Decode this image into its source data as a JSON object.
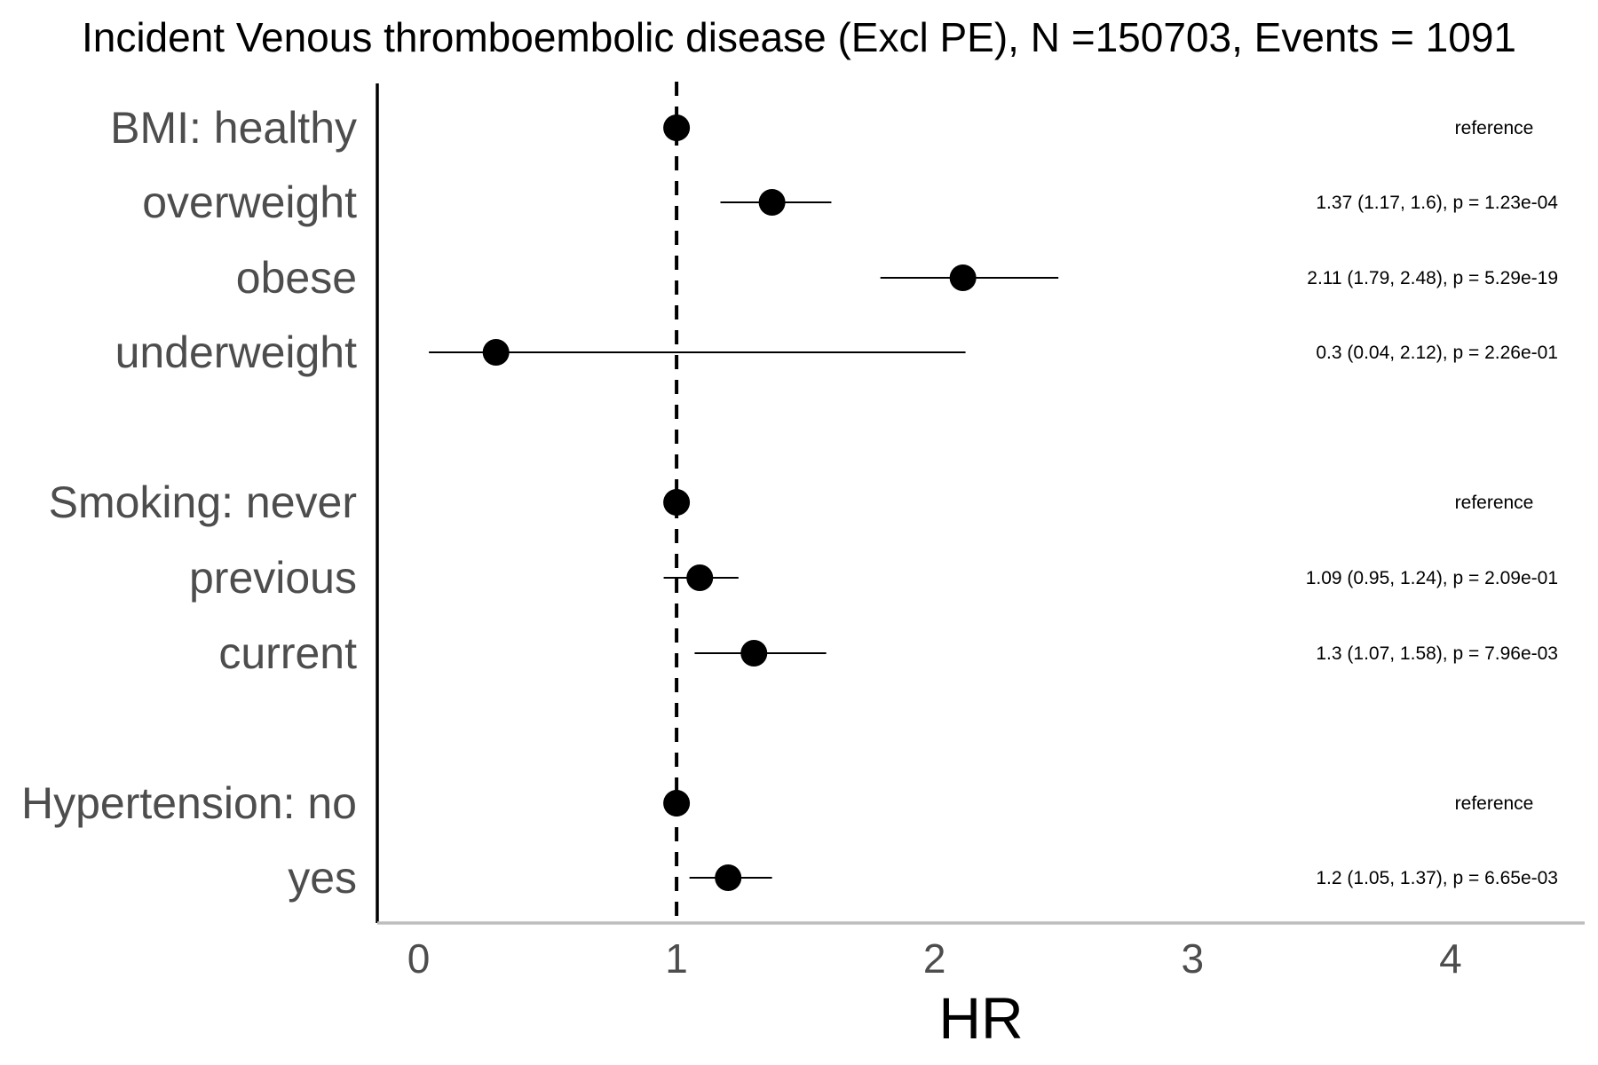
{
  "chart_data": {
    "type": "forest",
    "title": "Incident Venous thromboembolic disease (Excl PE), N =150703, Events = 1091",
    "xlabel": "HR",
    "xlim": [
      -0.16,
      4.52
    ],
    "xticks": [
      0,
      1,
      2,
      3,
      4
    ],
    "reference_line": 1,
    "grid": false,
    "rows": [
      {
        "label": "BMI: healthy",
        "hr": 1,
        "lower": null,
        "upper": null,
        "annotation": "reference"
      },
      {
        "label": "overweight",
        "hr": 1.37,
        "lower": 1.17,
        "upper": 1.6,
        "annotation": "1.37 (1.17, 1.6), p = 1.23e-04"
      },
      {
        "label": "obese",
        "hr": 2.11,
        "lower": 1.79,
        "upper": 2.48,
        "annotation": "2.11 (1.79, 2.48), p = 5.29e-19"
      },
      {
        "label": "underweight",
        "hr": 0.3,
        "lower": 0.04,
        "upper": 2.12,
        "annotation": "0.3 (0.04, 2.12), p = 2.26e-01"
      },
      {
        "label": "Smoking: never",
        "hr": 1,
        "lower": null,
        "upper": null,
        "annotation": "reference"
      },
      {
        "label": "previous",
        "hr": 1.09,
        "lower": 0.95,
        "upper": 1.24,
        "annotation": "1.09 (0.95, 1.24), p = 2.09e-01"
      },
      {
        "label": "current",
        "hr": 1.3,
        "lower": 1.07,
        "upper": 1.58,
        "annotation": "1.3 (1.07, 1.58), p = 7.96e-03"
      },
      {
        "label": "Hypertension: no",
        "hr": 1,
        "lower": null,
        "upper": null,
        "annotation": "reference"
      },
      {
        "label": "yes",
        "hr": 1.2,
        "lower": 1.05,
        "upper": 1.37,
        "annotation": "1.2 (1.05, 1.37), p = 6.65e-03"
      }
    ]
  }
}
